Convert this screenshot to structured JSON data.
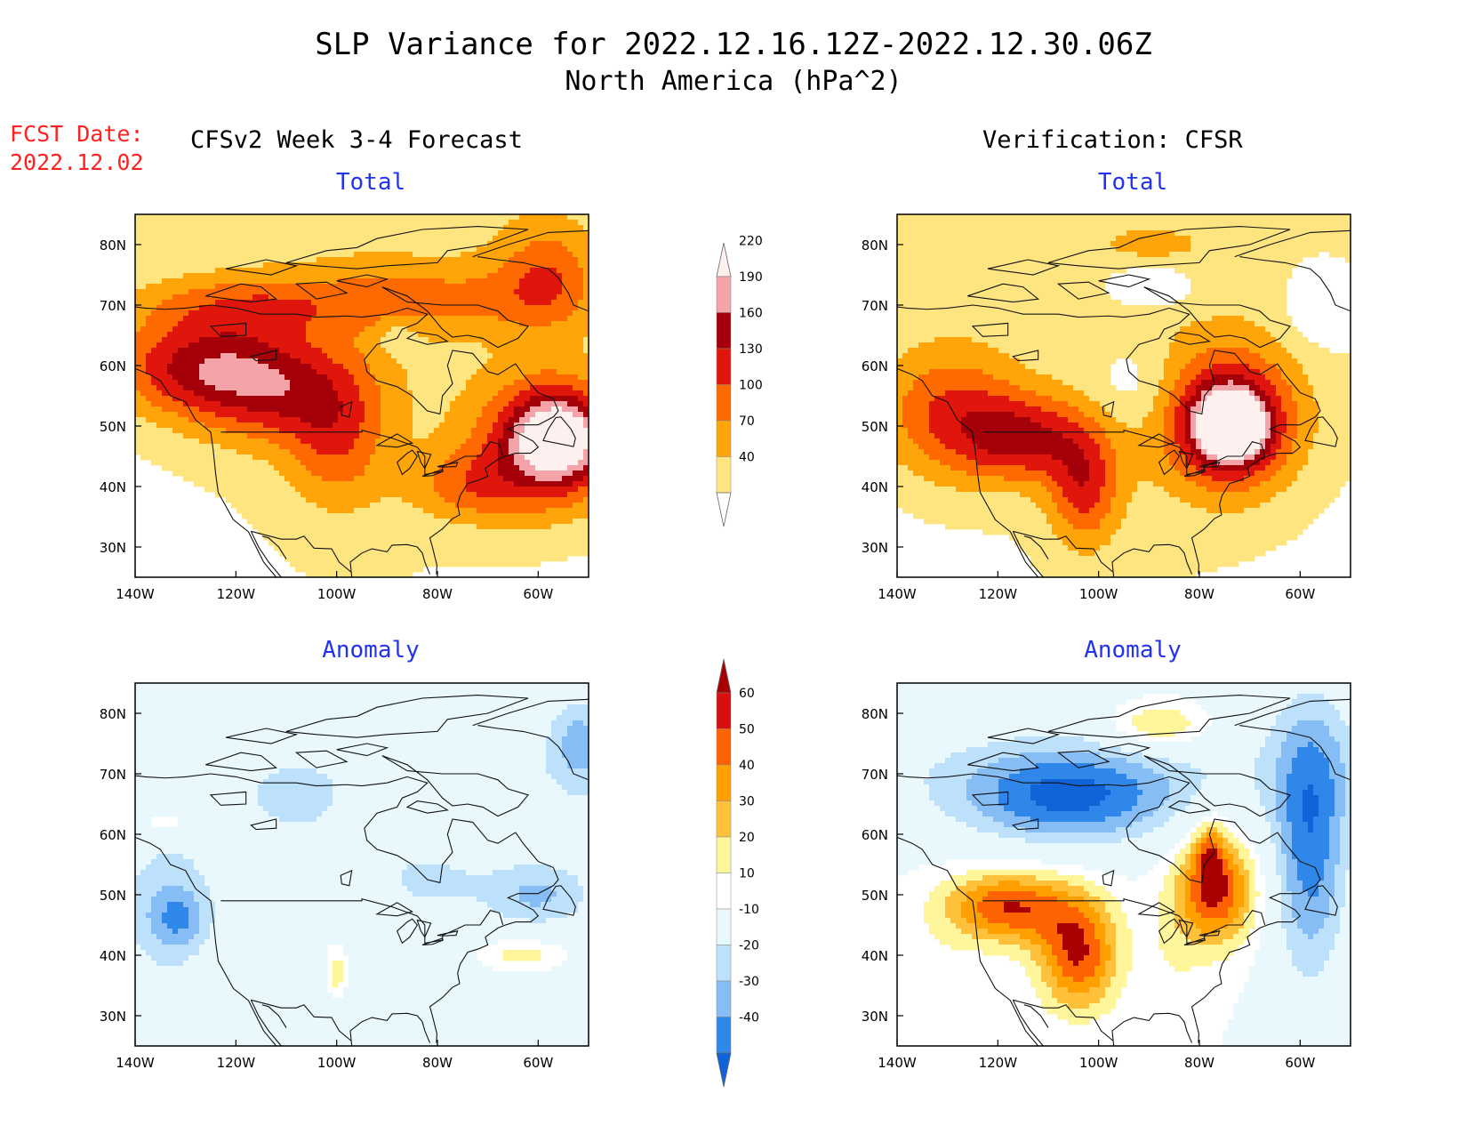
{
  "header": {
    "title": "SLP Variance for 2022.12.16.12Z-2022.12.30.06Z",
    "subtitle": "North America (hPa^2)",
    "fcst_label": "FCST Date:",
    "fcst_date": "2022.12.02"
  },
  "columns": {
    "left": "CFSv2 Week 3-4 Forecast",
    "right": "Verification: CFSR"
  },
  "panels": [
    {
      "id": "fc-total",
      "title": "Total",
      "field": "total"
    },
    {
      "id": "vf-total",
      "title": "Total",
      "field": "total"
    },
    {
      "id": "fc-anom",
      "title": "Anomaly",
      "field": "anomaly"
    },
    {
      "id": "vf-anom",
      "title": "Anomaly",
      "field": "anomaly"
    }
  ],
  "map_axes": {
    "lon_ticks": [
      "140W",
      "120W",
      "100W",
      "80W",
      "60W"
    ],
    "lon_values": [
      -140,
      -120,
      -100,
      -80,
      -60
    ],
    "lat_ticks": [
      "30N",
      "40N",
      "50N",
      "60N",
      "70N",
      "80N"
    ],
    "lat_values": [
      30,
      40,
      50,
      60,
      70,
      80
    ],
    "lon_range": [
      -140,
      -50
    ],
    "lat_range": [
      25,
      85
    ]
  },
  "colorbars": {
    "total": {
      "levels": [
        "40",
        "70",
        "100",
        "130",
        "160",
        "190",
        "220"
      ],
      "colors": [
        "#ffffff",
        "#ffe57f",
        "#ffa50a",
        "#ff6a00",
        "#e0150c",
        "#a5000a",
        "#f4a3a8",
        "#fff0f0"
      ]
    },
    "anomaly": {
      "levels": [
        "-40",
        "-30",
        "-20",
        "-10",
        "10",
        "20",
        "30",
        "40",
        "50",
        "60"
      ],
      "colors": [
        "#1063d8",
        "#2f87ea",
        "#86bdf5",
        "#bde0fb",
        "#e8f8fd",
        "#ffffff",
        "#fff59a",
        "#ffc03a",
        "#ffa000",
        "#ff6200",
        "#d90e0e",
        "#a80000"
      ]
    }
  },
  "chart_data": {
    "type": "heatmap",
    "title": "SLP Variance for 2022.12.16.12Z-2022.12.30.06Z",
    "subtitle": "North America (hPa^2)",
    "grid": {
      "x_range": [
        -140,
        -50
      ],
      "y_range": [
        25,
        85
      ]
    },
    "panels": [
      {
        "name": "CFSv2 Week 3-4 Forecast / Total",
        "scale": "total",
        "base": [
          20,
          40
        ],
        "features": [
          {
            "lon": -118,
            "lat": 70,
            "rx": 22,
            "ry": 5,
            "value": 60
          },
          {
            "lon": -80,
            "lat": 71,
            "rx": 26,
            "ry": 6,
            "value": 55
          },
          {
            "lon": -58,
            "lat": 75,
            "rx": 10,
            "ry": 9,
            "value": 70
          },
          {
            "lon": -128,
            "lat": 60,
            "rx": 18,
            "ry": 8,
            "value": 105
          },
          {
            "lon": -112,
            "lat": 56,
            "rx": 18,
            "ry": 9,
            "value": 100
          },
          {
            "lon": -100,
            "lat": 47,
            "rx": 10,
            "ry": 11,
            "value": 70
          },
          {
            "lon": -58,
            "lat": 47,
            "rx": 16,
            "ry": 12,
            "value": 115
          },
          {
            "lon": -56,
            "lat": 48,
            "rx": 9,
            "ry": 7,
            "value": 145
          },
          {
            "lon": -74,
            "lat": 40,
            "rx": 12,
            "ry": 6,
            "value": 60
          },
          {
            "lon": -88,
            "lat": 65,
            "rx": 4,
            "ry": 3,
            "value": -30
          }
        ]
      },
      {
        "name": "Verification: CFSR / Total",
        "scale": "total",
        "base": [
          20,
          45
        ],
        "features": [
          {
            "lon": -90,
            "lat": 73,
            "rx": 10,
            "ry": 4,
            "value": -40
          },
          {
            "lon": -56,
            "lat": 70,
            "rx": 7,
            "ry": 7,
            "value": -40
          },
          {
            "lon": -93,
            "lat": 57,
            "rx": 8,
            "ry": 7,
            "value": -35
          },
          {
            "lon": -130,
            "lat": 52,
            "rx": 14,
            "ry": 11,
            "value": 90
          },
          {
            "lon": -115,
            "lat": 48,
            "rx": 12,
            "ry": 7,
            "value": 110
          },
          {
            "lon": -103,
            "lat": 40,
            "rx": 7,
            "ry": 10,
            "value": 100
          },
          {
            "lon": -74,
            "lat": 51,
            "rx": 15,
            "ry": 13,
            "value": 110
          },
          {
            "lon": -74,
            "lat": 50,
            "rx": 8,
            "ry": 7,
            "value": 150
          },
          {
            "lon": -73,
            "lat": 50,
            "rx": 5,
            "ry": 4,
            "value": 100
          },
          {
            "lon": -89,
            "lat": 80,
            "rx": 7,
            "ry": 2,
            "value": 40
          }
        ]
      },
      {
        "name": "CFSv2 Week 3-4 Forecast / Anomaly",
        "scale": "anomaly",
        "base": [
          -15,
          0
        ],
        "features": [
          {
            "lon": -133,
            "lat": 47,
            "rx": 9,
            "ry": 10,
            "value": -22
          },
          {
            "lon": -131,
            "lat": 46,
            "rx": 5,
            "ry": 4,
            "value": -15
          },
          {
            "lon": -60,
            "lat": 50,
            "rx": 10,
            "ry": 5,
            "value": -22
          },
          {
            "lon": -82,
            "lat": 52,
            "rx": 12,
            "ry": 6,
            "value": -12
          },
          {
            "lon": -108,
            "lat": 65,
            "rx": 7,
            "ry": 4,
            "value": -10
          },
          {
            "lon": -52,
            "lat": 75,
            "rx": 4,
            "ry": 6,
            "value": -20
          },
          {
            "lon": -63,
            "lat": 40,
            "rx": 10,
            "ry": 3,
            "value": 24
          },
          {
            "lon": -134,
            "lat": 62,
            "rx": 6,
            "ry": 2,
            "value": 22
          },
          {
            "lon": -100,
            "lat": 37,
            "rx": 2,
            "ry": 4,
            "value": 22
          },
          {
            "lon": -105,
            "lat": 42,
            "rx": 20,
            "ry": 8,
            "value": 6
          }
        ]
      },
      {
        "name": "Verification: CFSR / Anomaly",
        "scale": "anomaly",
        "base": [
          -22,
          10
        ],
        "features": [
          {
            "lon": -106,
            "lat": 66,
            "rx": 22,
            "ry": 8,
            "value": -45
          },
          {
            "lon": -58,
            "lat": 58,
            "rx": 8,
            "ry": 24,
            "value": -45
          },
          {
            "lon": -88,
            "lat": 78,
            "rx": 10,
            "ry": 4,
            "value": 30
          },
          {
            "lon": -118,
            "lat": 48,
            "rx": 13,
            "ry": 6,
            "value": 50
          },
          {
            "lon": -104,
            "lat": 40,
            "rx": 8,
            "ry": 9,
            "value": 50
          },
          {
            "lon": -77,
            "lat": 51,
            "rx": 8,
            "ry": 9,
            "value": 55
          },
          {
            "lon": -78,
            "lat": 58,
            "rx": 3,
            "ry": 5,
            "value": 25
          },
          {
            "lon": -85,
            "lat": 40,
            "rx": 6,
            "ry": 8,
            "value": 8
          },
          {
            "lon": -134,
            "lat": 37,
            "rx": 8,
            "ry": 6,
            "value": 8
          }
        ]
      }
    ]
  }
}
